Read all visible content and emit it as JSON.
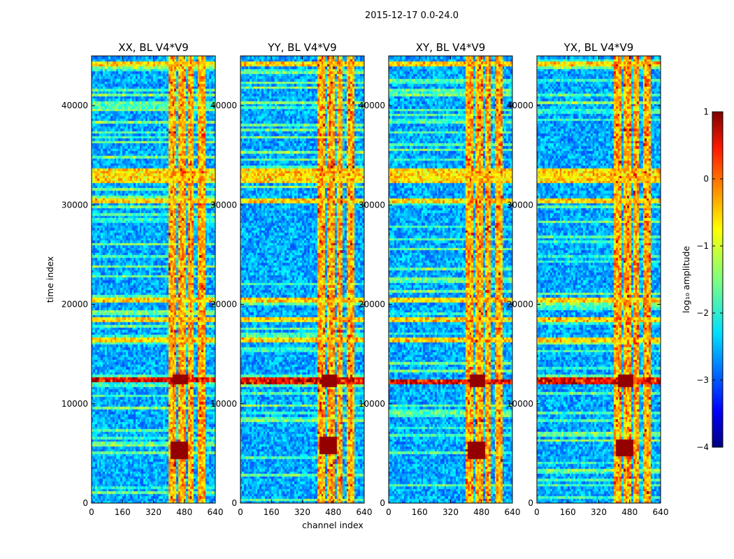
{
  "chart_data": {
    "type": "heatmap",
    "suptitle": "2015-12-17 0.0-24.0",
    "xlabel": "channel index",
    "ylabel": "time index",
    "xlim": [
      0,
      640
    ],
    "ylim": [
      0,
      45000
    ],
    "xticks": [
      0,
      160,
      320,
      480,
      640
    ],
    "yticks": [
      0,
      10000,
      20000,
      30000,
      40000
    ],
    "panels": [
      {
        "title": "XX, BL V4*V9",
        "burst_y": 12500,
        "burst_low_y": 5400
      },
      {
        "title": "YY, BL V4*V9",
        "burst_y": 12400,
        "burst_low_y": 5800
      },
      {
        "title": "XY, BL V4*V9",
        "burst_y": 12300,
        "burst_low_y": 5400
      },
      {
        "title": "YX, BL V4*V9",
        "burst_y": 12400,
        "burst_low_y": 5600
      }
    ],
    "rfi_channel_bands": [
      [
        400,
        440
      ],
      [
        450,
        490
      ],
      [
        500,
        525
      ],
      [
        550,
        590
      ]
    ],
    "rfi_time_bands": [
      20500,
      30600,
      32900,
      33500,
      32500,
      18400,
      16400,
      44300
    ],
    "colorbar": {
      "label": "log₁₀ amplitude",
      "range": [
        -4,
        1
      ],
      "ticks": [
        1,
        0,
        -1,
        -2,
        -3,
        -4
      ],
      "colormap": "jet"
    }
  },
  "colors": {
    "background": "#ffffff",
    "axis": "#000000"
  }
}
